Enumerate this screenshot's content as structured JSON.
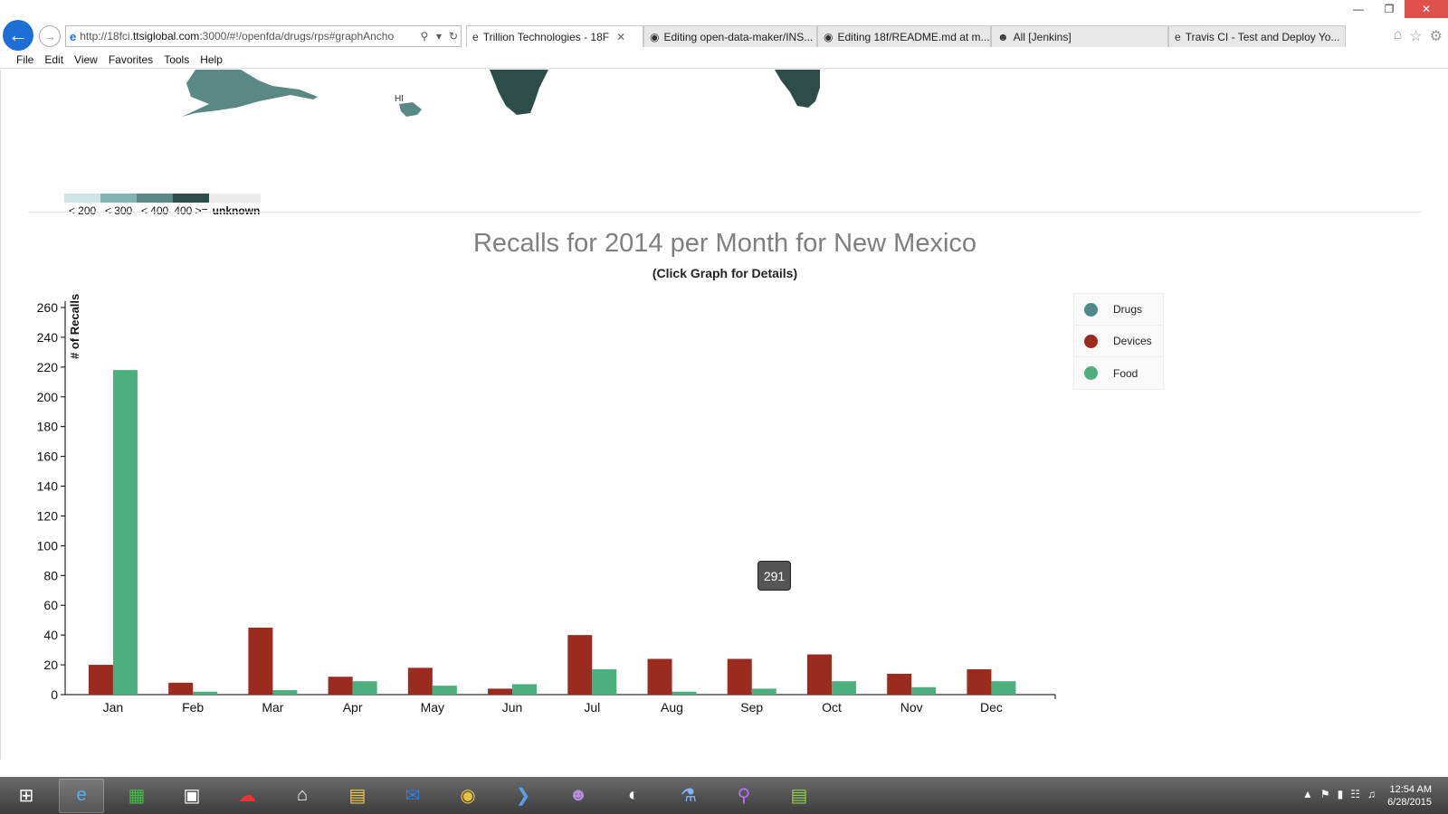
{
  "browser": {
    "url_prefix": "http://18fci.",
    "url_domain": "ttsiglobal.com",
    "url_rest": ":3000/#!/openfda/drugs/rps#graphAncho",
    "tabs": [
      {
        "label": "Trillion Technologies - 18F",
        "icon": "ie-icon",
        "active": true
      },
      {
        "label": "Editing open-data-maker/INS...",
        "icon": "github-icon",
        "active": false
      },
      {
        "label": "Editing 18f/README.md at m...",
        "icon": "github-icon",
        "active": false
      },
      {
        "label": "All [Jenkins]",
        "icon": "jenkins-icon",
        "active": false
      },
      {
        "label": "Travis CI - Test and Deploy Yo...",
        "icon": "ie-icon",
        "active": false
      }
    ]
  },
  "menu": [
    "File",
    "Edit",
    "View",
    "Favorites",
    "Tools",
    "Help"
  ],
  "map": {
    "state_label": "HI",
    "legend": [
      {
        "label": "< 200",
        "color": "#cfe5e3"
      },
      {
        "label": "< 300",
        "color": "#82b4b1"
      },
      {
        "label": "< 400",
        "color": "#5a8985"
      },
      {
        "label": "400 >=",
        "color": "#2e4c4a"
      },
      {
        "label": "unknown",
        "color": "#ececec"
      }
    ]
  },
  "chart_title": "Recalls for 2014 per Month for New Mexico",
  "chart_subtitle": "(Click Graph for Details)",
  "tooltip_value": "291",
  "chart_data": {
    "type": "bar",
    "ylabel": "# of Recalls",
    "ylim": [
      0,
      260
    ],
    "yticks": [
      0,
      20,
      40,
      60,
      80,
      100,
      120,
      140,
      160,
      180,
      200,
      220,
      240,
      260
    ],
    "categories": [
      "Jan",
      "Feb",
      "Mar",
      "Apr",
      "May",
      "Jun",
      "Jul",
      "Aug",
      "Sep",
      "Oct",
      "Nov",
      "Dec"
    ],
    "series": [
      {
        "name": "Drugs",
        "color": "#4f8a8b",
        "values": [
          0,
          0,
          0,
          0,
          0,
          0,
          0,
          0,
          0,
          0,
          0,
          0
        ]
      },
      {
        "name": "Devices",
        "color": "#9b2a1f",
        "values": [
          20,
          8,
          45,
          12,
          18,
          4,
          40,
          24,
          24,
          27,
          14,
          17
        ]
      },
      {
        "name": "Food",
        "color": "#4caf7d",
        "values": [
          218,
          2,
          3,
          9,
          6,
          7,
          17,
          2,
          4,
          9,
          5,
          9
        ]
      }
    ],
    "legend_position": "top-right"
  },
  "taskbar": {
    "apps": [
      "windows-start-icon",
      "ie-icon",
      "store-icon",
      "lenovo-icon",
      "cloud-icon",
      "home-icon",
      "folder-icon",
      "outlook-icon",
      "chrome-icon",
      "powershell-icon",
      "github-icon",
      "paint-icon",
      "network-icon",
      "search-icon",
      "chart-app-icon"
    ],
    "time": "12:54 AM",
    "date": "6/28/2015"
  }
}
